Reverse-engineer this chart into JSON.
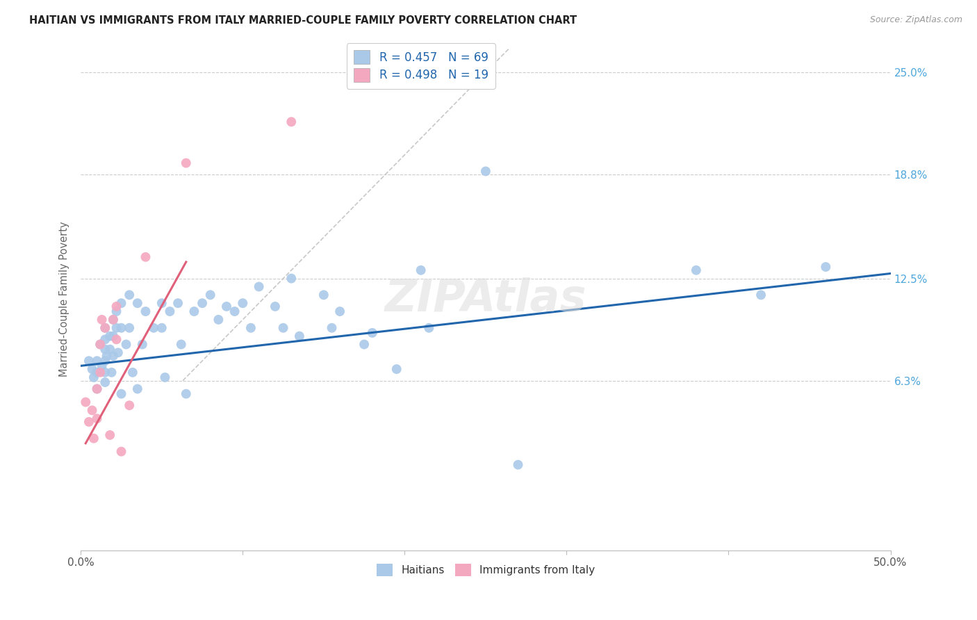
{
  "title": "HAITIAN VS IMMIGRANTS FROM ITALY MARRIED-COUPLE FAMILY POVERTY CORRELATION CHART",
  "source": "Source: ZipAtlas.com",
  "ylabel": "Married-Couple Family Poverty",
  "xlim": [
    0.0,
    0.5
  ],
  "ylim": [
    -0.04,
    0.265
  ],
  "xticks": [
    0.0,
    0.1,
    0.2,
    0.3,
    0.4,
    0.5
  ],
  "xtick_labels": [
    "0.0%",
    "",
    "",
    "",
    "",
    "50.0%"
  ],
  "ytick_labels_right": [
    "25.0%",
    "18.8%",
    "12.5%",
    "6.3%"
  ],
  "yticks_right": [
    0.25,
    0.188,
    0.125,
    0.063
  ],
  "blue_color": "#aac9e8",
  "pink_color": "#f4a8c0",
  "blue_line_color": "#2166ac",
  "pink_line_color": "#e0607a",
  "diagonal_color": "#c8c8c8",
  "legend1": "Haitians",
  "legend2": "Immigrants from Italy",
  "blue_scatter_x": [
    0.005,
    0.007,
    0.008,
    0.01,
    0.01,
    0.01,
    0.012,
    0.013,
    0.015,
    0.015,
    0.015,
    0.015,
    0.015,
    0.015,
    0.016,
    0.018,
    0.018,
    0.019,
    0.02,
    0.02,
    0.02,
    0.022,
    0.022,
    0.023,
    0.025,
    0.025,
    0.025,
    0.028,
    0.03,
    0.03,
    0.032,
    0.035,
    0.035,
    0.038,
    0.04,
    0.045,
    0.05,
    0.05,
    0.052,
    0.055,
    0.06,
    0.062,
    0.065,
    0.07,
    0.075,
    0.08,
    0.085,
    0.09,
    0.095,
    0.1,
    0.105,
    0.11,
    0.12,
    0.125,
    0.13,
    0.135,
    0.15,
    0.155,
    0.16,
    0.175,
    0.18,
    0.195,
    0.21,
    0.215,
    0.25,
    0.27,
    0.38,
    0.42,
    0.46
  ],
  "blue_scatter_y": [
    0.075,
    0.07,
    0.065,
    0.075,
    0.068,
    0.058,
    0.085,
    0.072,
    0.095,
    0.088,
    0.082,
    0.075,
    0.068,
    0.062,
    0.078,
    0.09,
    0.082,
    0.068,
    0.1,
    0.09,
    0.078,
    0.105,
    0.095,
    0.08,
    0.11,
    0.095,
    0.055,
    0.085,
    0.115,
    0.095,
    0.068,
    0.11,
    0.058,
    0.085,
    0.105,
    0.095,
    0.11,
    0.095,
    0.065,
    0.105,
    0.11,
    0.085,
    0.055,
    0.105,
    0.11,
    0.115,
    0.1,
    0.108,
    0.105,
    0.11,
    0.095,
    0.12,
    0.108,
    0.095,
    0.125,
    0.09,
    0.115,
    0.095,
    0.105,
    0.085,
    0.092,
    0.07,
    0.13,
    0.095,
    0.19,
    0.012,
    0.13,
    0.115,
    0.132
  ],
  "pink_scatter_x": [
    0.003,
    0.005,
    0.007,
    0.008,
    0.01,
    0.01,
    0.012,
    0.012,
    0.013,
    0.015,
    0.018,
    0.02,
    0.022,
    0.022,
    0.025,
    0.03,
    0.04,
    0.065,
    0.13
  ],
  "pink_scatter_y": [
    0.05,
    0.038,
    0.045,
    0.028,
    0.058,
    0.04,
    0.085,
    0.068,
    0.1,
    0.095,
    0.03,
    0.1,
    0.108,
    0.088,
    0.02,
    0.048,
    0.138,
    0.195,
    0.22
  ],
  "blue_line_x": [
    0.0,
    0.5
  ],
  "blue_line_y": [
    0.072,
    0.128
  ],
  "pink_line_x": [
    0.003,
    0.065
  ],
  "pink_line_y": [
    0.025,
    0.135
  ],
  "diag_line_x": [
    0.063,
    0.265
  ],
  "diag_line_y": [
    0.063,
    0.265
  ]
}
